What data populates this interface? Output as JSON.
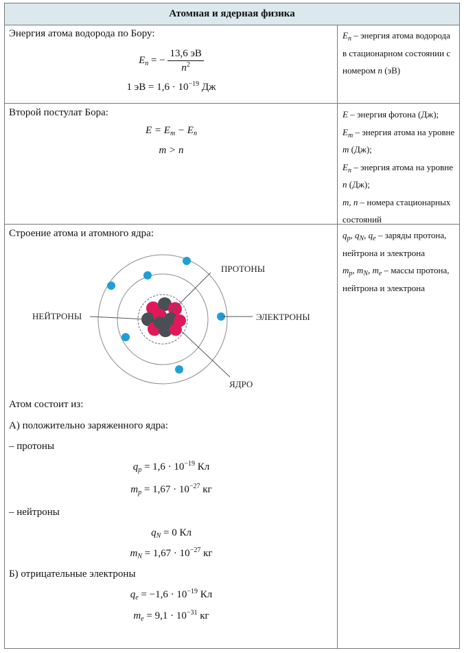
{
  "header": {
    "title": "Атомная и ядерная физика"
  },
  "row1": {
    "title": "Энергия атома водорода по Бору:",
    "formula_lhs": "E",
    "formula_lhs_sub": "n",
    "formula_eq": "= −",
    "frac_num": "13,6 эВ",
    "frac_den": "n",
    "frac_den_sup": "2",
    "ev_line": "1 эВ = 1,6 · 10",
    "ev_exp": "−19",
    "ev_unit": " Дж",
    "desc": {
      "sym": "E",
      "sub": "n",
      "text": " – энергия атома водорода в стационарном состоянии с номером ",
      "n": "n",
      "tail": " (эВ)"
    }
  },
  "row2": {
    "title": "Второй постулат Бора:",
    "f1": "E = E",
    "f1_sub1": "m",
    "f1_mid": " − E",
    "f1_sub2": "n",
    "f2": "m > n",
    "d1_sym": "E",
    "d1_text": " – энергия фотона (Дж);",
    "d2_sym": "E",
    "d2_sub": "m",
    "d2_text": " – энергия атома на уровне ",
    "d2_m": "m",
    "d2_tail": " (Дж);",
    "d3_sym": "E",
    "d3_sub": "n",
    "d3_text": " – энергия атома на уровне ",
    "d3_n": "n",
    "d3_tail": " (Дж);",
    "d4_sym": "m, n",
    "d4_text": " – номера стационарных состояний"
  },
  "row3": {
    "title": "Строение атома и атомного ядра:",
    "diagram": {
      "label_protons": "ПРОТОНЫ",
      "label_neutrons": "НЕЙТРОНЫ",
      "label_electrons": "ЭЛЕКТРОНЫ",
      "label_nucleus": "ЯДРО",
      "colors": {
        "electron": "#1e9fd8",
        "proton": "#e0185a",
        "neutron": "#4a4f55",
        "orbit": "#8a8a8a"
      }
    },
    "consists": "Атом состоит из:",
    "a_title": "А) положительно заряженного ядра:",
    "protons_title": "– протоны",
    "qp_sym": "q",
    "qp_sub": "p",
    "qp_val": " = 1,6 · 10",
    "qp_exp": "−19",
    "qp_unit": " Кл",
    "mp_sym": "m",
    "mp_sub": "p",
    "mp_val": " = 1,67 · 10",
    "mp_exp": "−27",
    "mp_unit": " кг",
    "neutrons_title": "– нейтроны",
    "qn_sym": "q",
    "qn_sub": "N",
    "qn_val": " = 0 Кл",
    "mn_sym": "m",
    "mn_sub": "N",
    "mn_val": " = 1,67 · 10",
    "mn_exp": "−27",
    "mn_unit": " кг",
    "b_title": "Б) отрицательные электроны",
    "qe_sym": "q",
    "qe_sub": "e",
    "qe_val": " = −1,6 · 10",
    "qe_exp": "−19",
    "qe_unit": " Кл",
    "me_sym": "m",
    "me_sub": "e",
    "me_val": " = 9,1 · 10",
    "me_exp": "−31",
    "me_unit": " кг",
    "desc_q": "q",
    "desc_q_subs": [
      "p",
      "N",
      "e"
    ],
    "desc_q_text": " – заряды протона, нейтрона и электрона",
    "desc_m": "m",
    "desc_m_subs": [
      "p",
      "N",
      "e"
    ],
    "desc_m_text": " – массы протона, нейтрона и электрона"
  }
}
